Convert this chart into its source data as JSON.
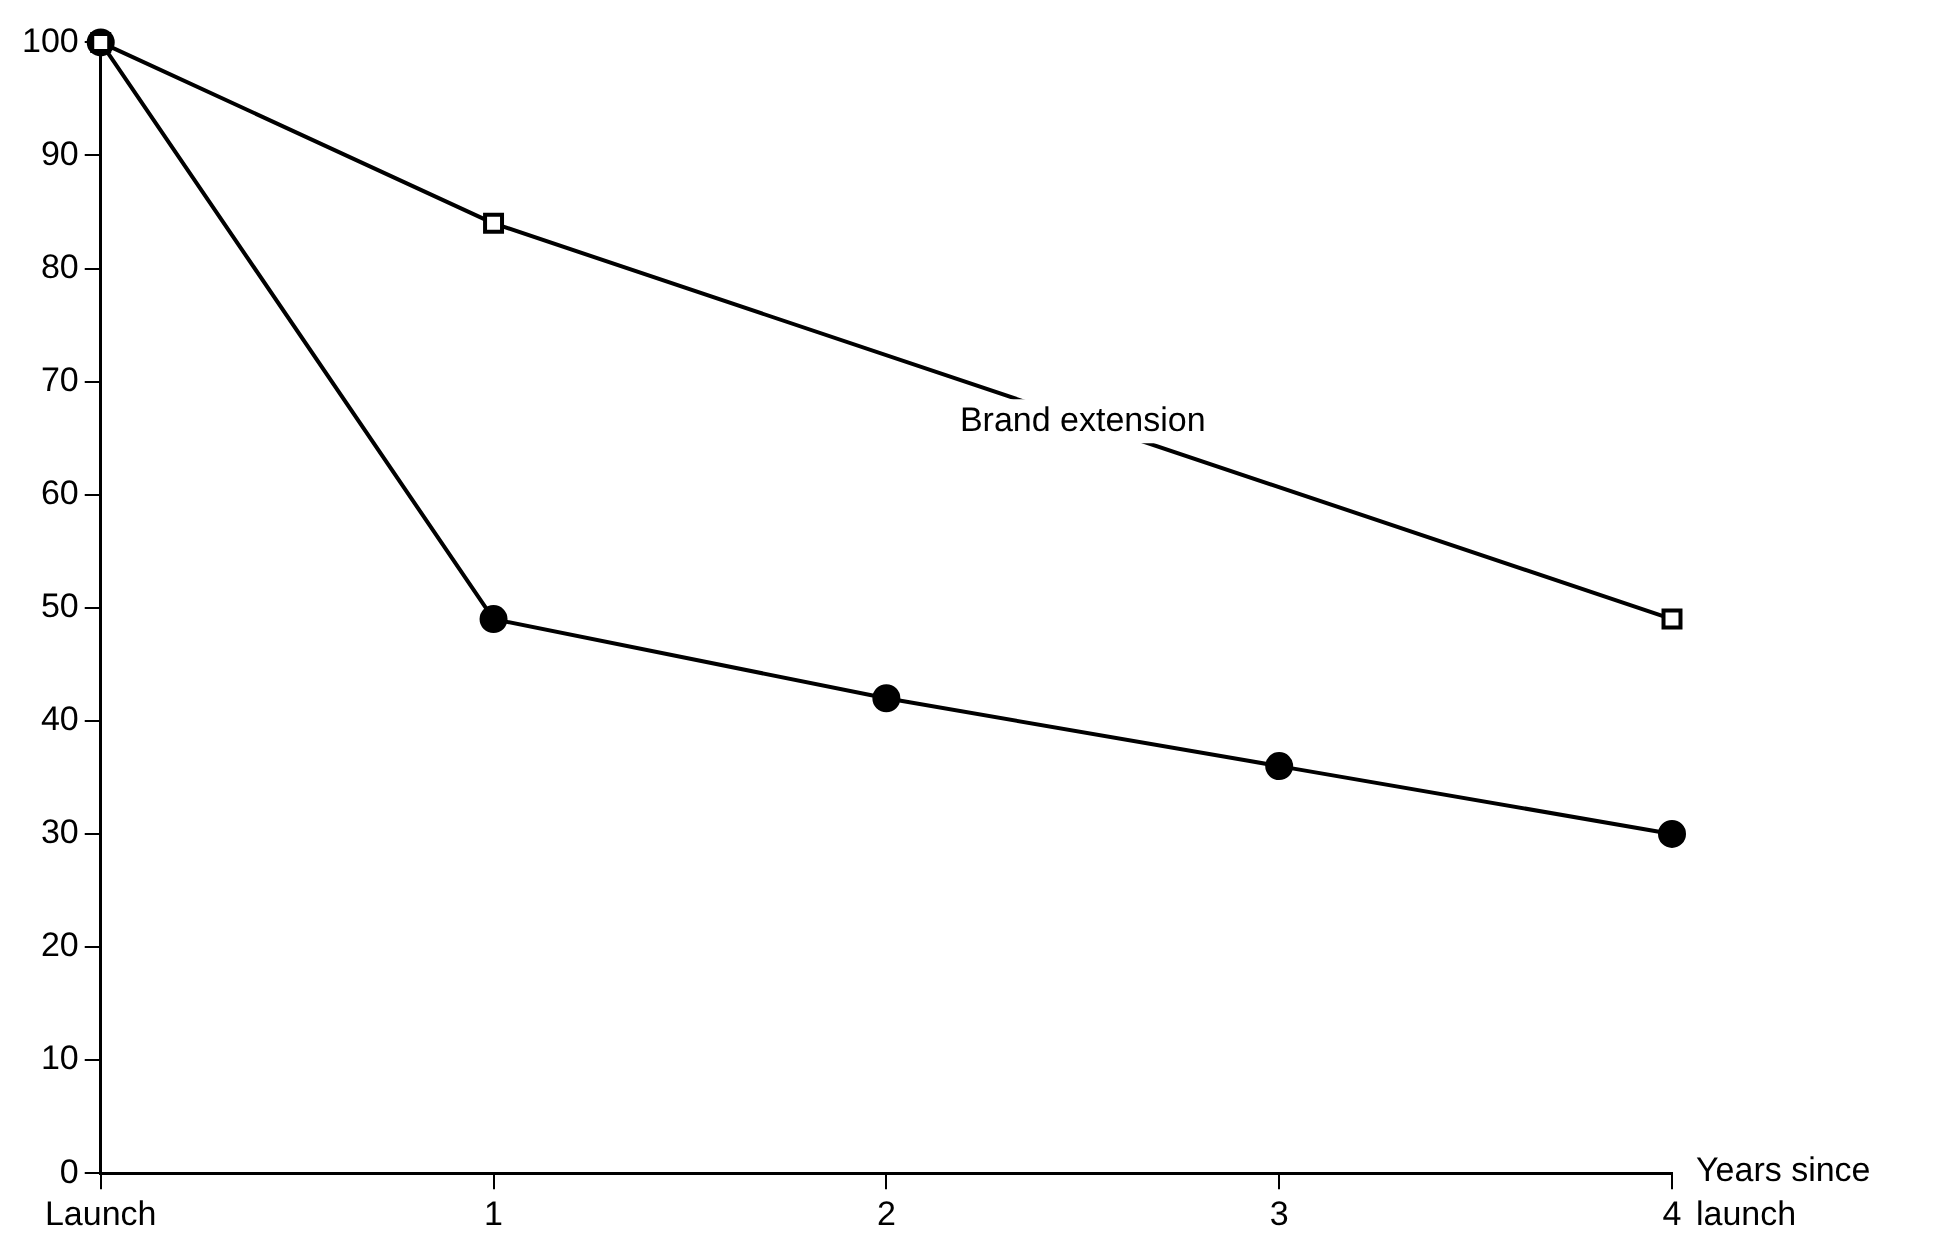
{
  "chart_data": {
    "type": "line",
    "xlabel": "Years since launch",
    "xlim": [
      0,
      4
    ],
    "xticks": [
      {
        "value": 0,
        "label": "Launch"
      },
      1,
      2,
      3,
      4
    ],
    "ylim": [
      0,
      100
    ],
    "yticks": [
      0,
      10,
      20,
      30,
      40,
      50,
      60,
      70,
      80,
      90,
      100
    ],
    "grid": false,
    "legend": false,
    "series": [
      {
        "name": "Brand extension",
        "color": "#000000",
        "marker": "square",
        "x": [
          0,
          1,
          4
        ],
        "values": [
          100,
          84,
          49
        ]
      },
      {
        "color": "#000000",
        "marker": "circle",
        "x": [
          0,
          1,
          2,
          3,
          4
        ],
        "values": [
          100,
          49,
          42,
          36,
          30
        ]
      }
    ]
  }
}
